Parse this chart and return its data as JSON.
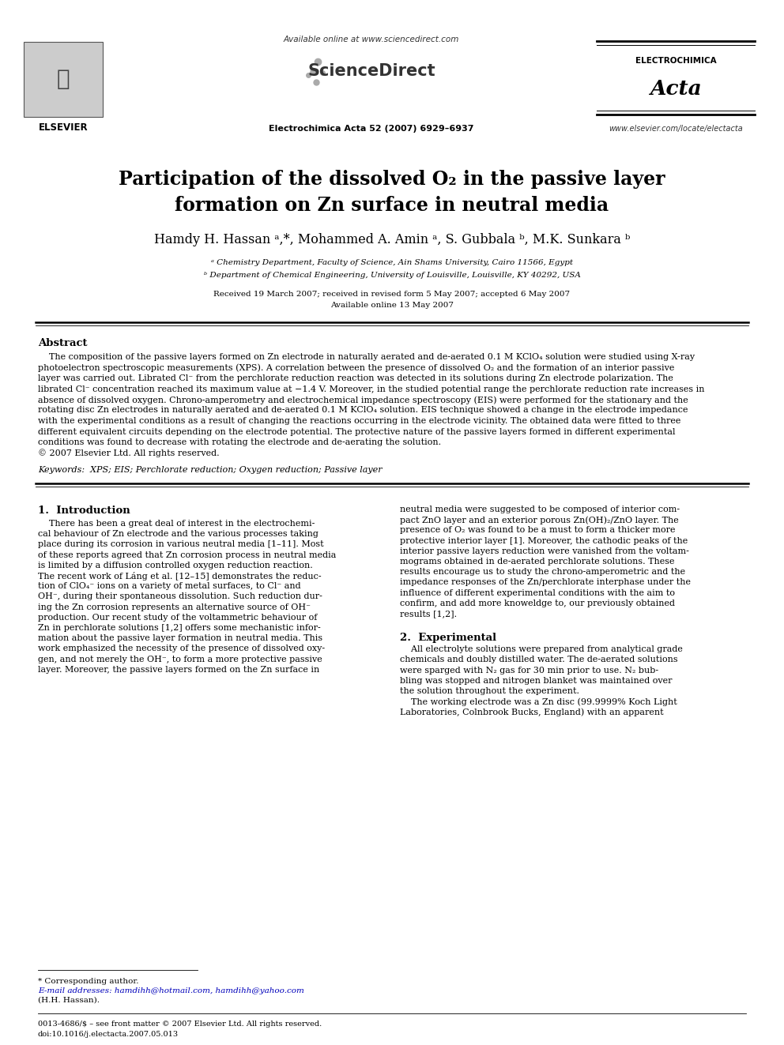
{
  "bg_color": "#ffffff",
  "header_available": "Available online at www.sciencedirect.com",
  "header_sciencedirect": "ScienceDirect",
  "header_journal_info": "Electrochimica Acta 52 (2007) 6929–6937",
  "header_elsevier": "ELSEVIER",
  "header_journal_top": "ELECTROCHIMICA",
  "header_journal_script": "Acta",
  "header_website": "www.elsevier.com/locate/electacta",
  "title_line1": "Participation of the dissolved O₂ in the passive layer",
  "title_line2": "formation on Zn surface in neutral media",
  "authors": "Hamdy H. Hassan ᵃ,*, Mohammed A. Amin ᵃ, S. Gubbala ᵇ, M.K. Sunkara ᵇ",
  "affil_a": "ᵃ Chemistry Department, Faculty of Science, Ain Shams University, Cairo 11566, Egypt",
  "affil_b": "ᵇ Department of Chemical Engineering, University of Louisville, Louisville, KY 40292, USA",
  "received": "Received 19 March 2007; received in revised form 5 May 2007; accepted 6 May 2007",
  "available_online2": "Available online 13 May 2007",
  "abstract_heading": "Abstract",
  "keywords_line": "Keywords:  XPS; EIS; Perchlorate reduction; Oxygen reduction; Passive layer",
  "sec1_heading": "1.  Introduction",
  "sec2_heading": "2.  Experimental",
  "footer_note": "* Corresponding author.",
  "footer_email": "E-mail addresses: hamdihh@hotmail.com, hamdihh@yahoo.com",
  "footer_name": "(H.H. Hassan).",
  "footer_issn": "0013-4686/$ – see front matter © 2007 Elsevier Ltd. All rights reserved.",
  "footer_doi": "doi:10.1016/j.electacta.2007.05.013"
}
